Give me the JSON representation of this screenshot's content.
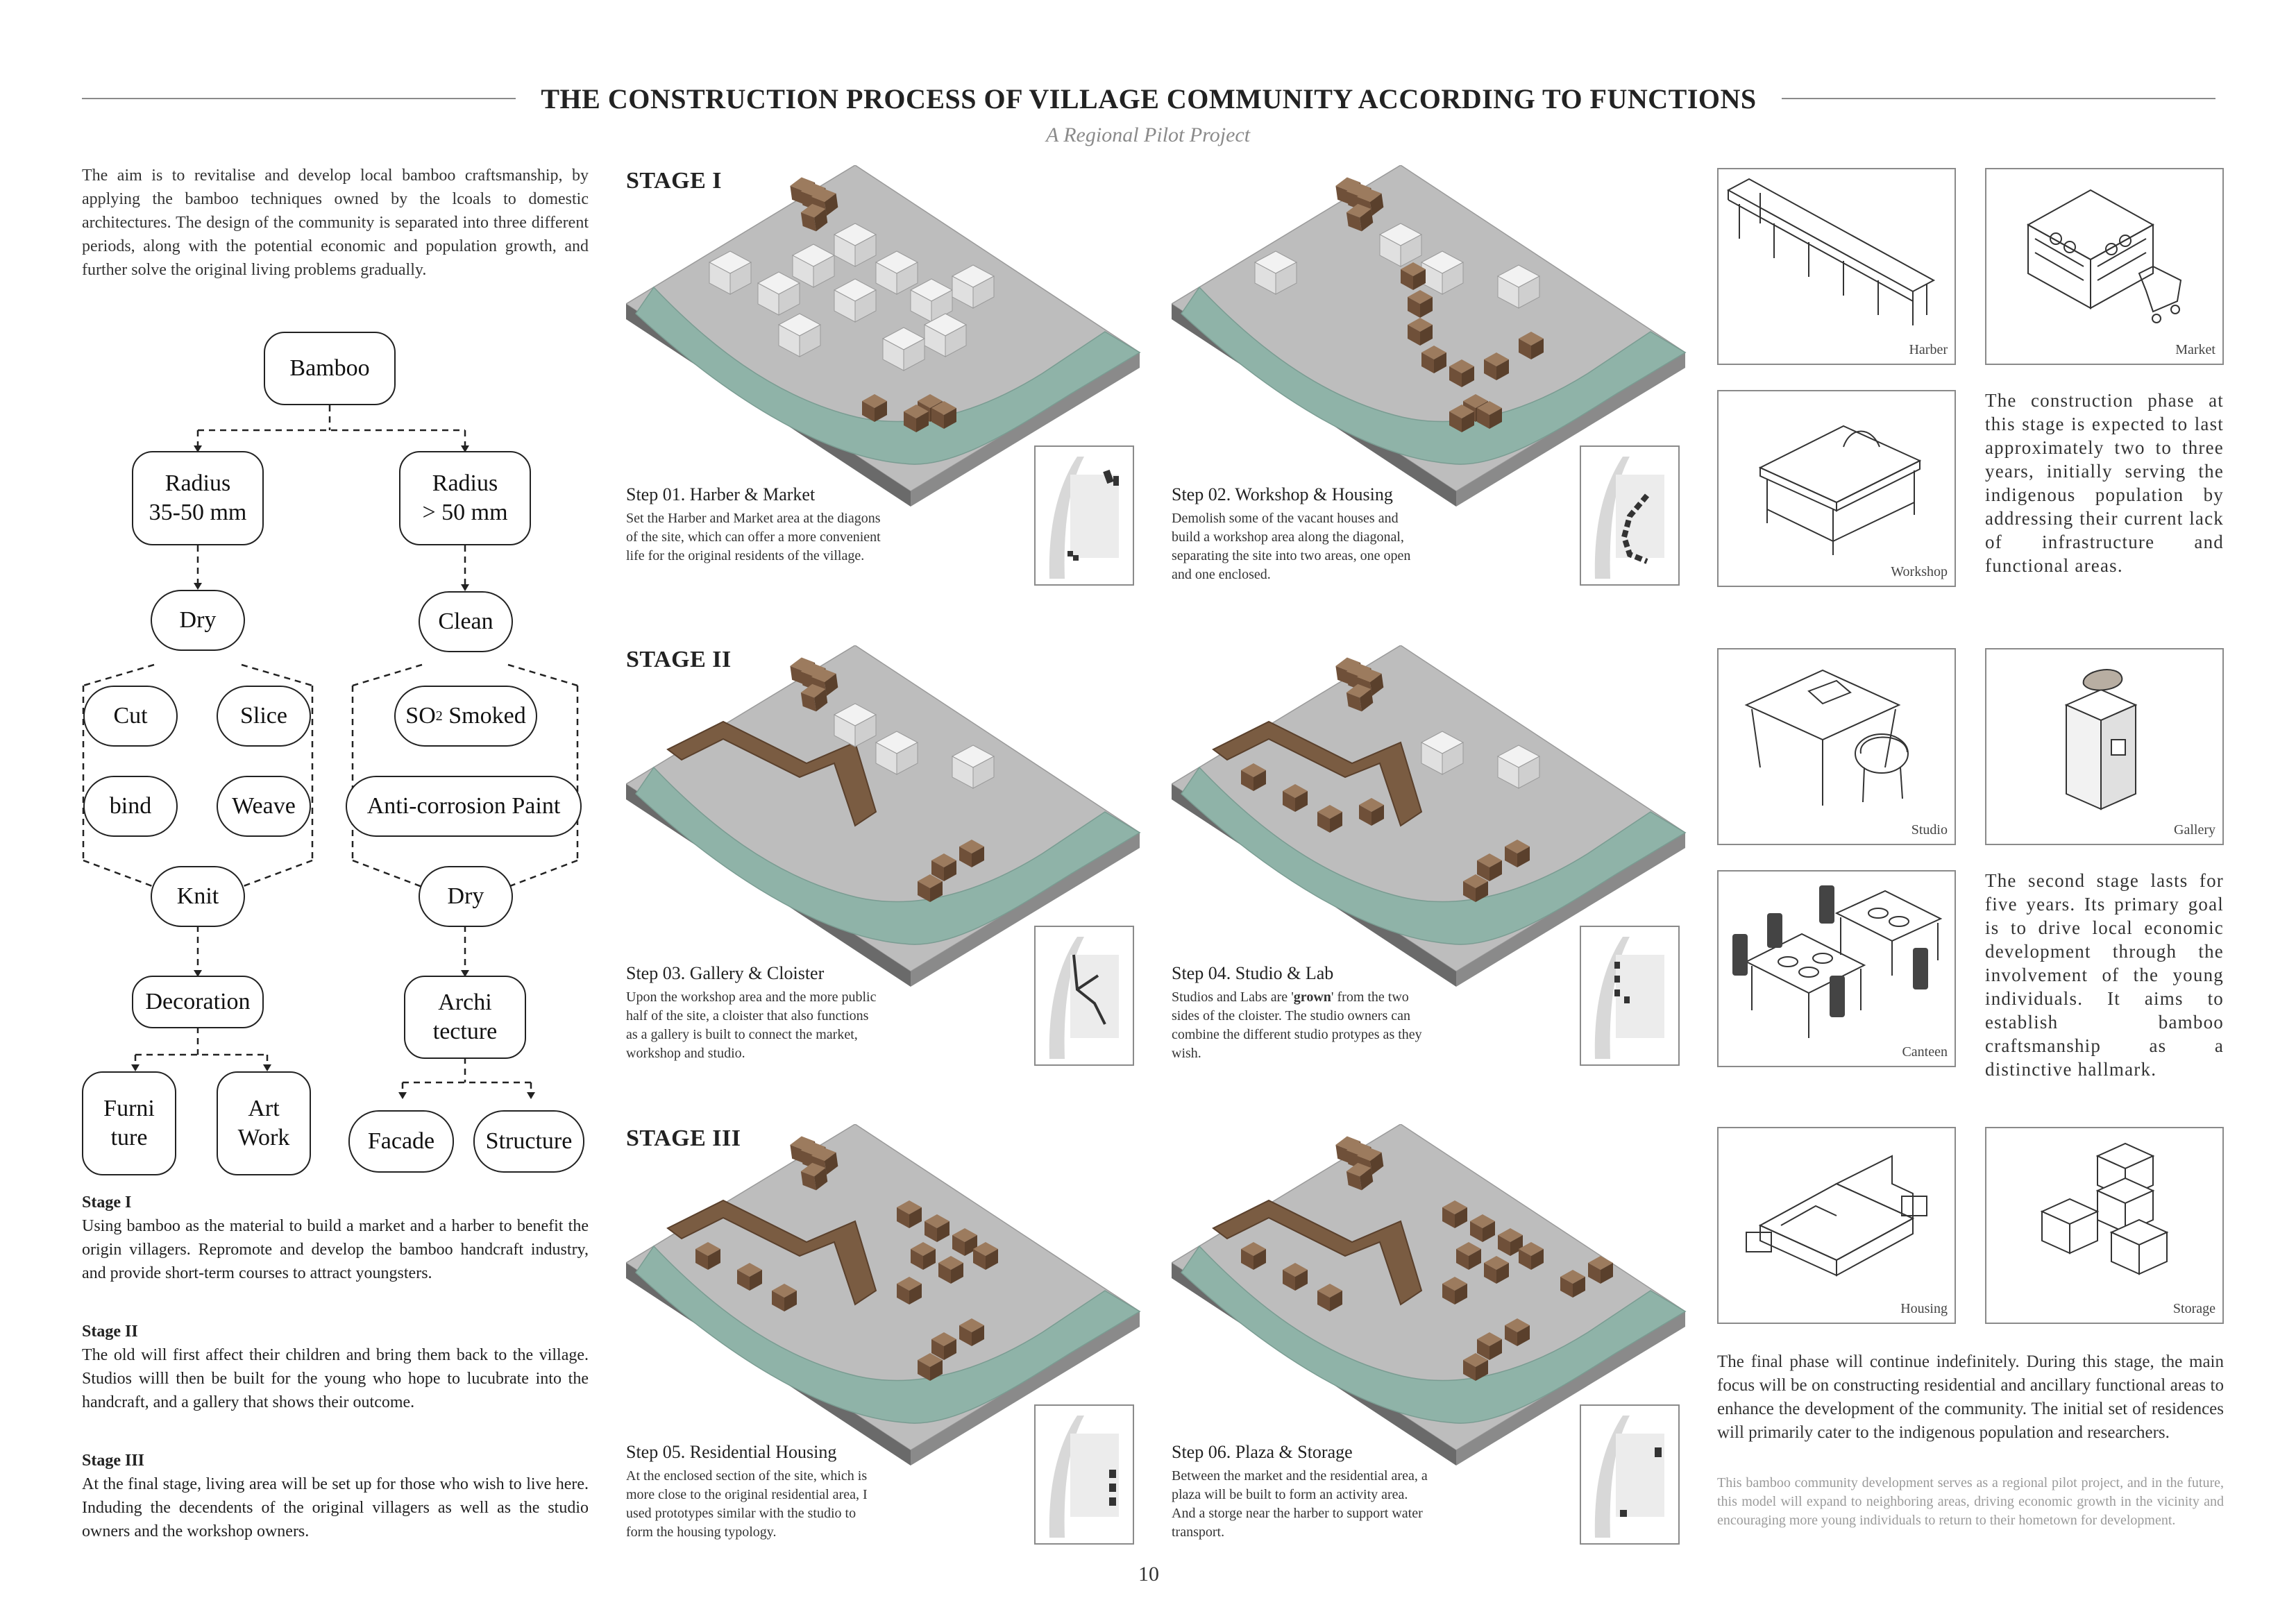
{
  "header": {
    "title": "THE CONSTRUCTION PROCESS OF VILLAGE COMMUNITY ACCORDING TO FUNCTIONS",
    "subtitle": "A Regional Pilot Project"
  },
  "intro": "The aim is to revitalise and develop local bamboo craftsmanship, by applying the bamboo techniques owned by the lcoals to domestic architectures. The design of the community is separated into three different periods, along with the potential economic and population growth, and further solve the original living problems gradually.",
  "flowchart": {
    "root": "Bamboo",
    "left": {
      "radius_line1": "Radius",
      "radius_line2": "35-50 mm",
      "dry": "Dry",
      "cut": "Cut",
      "slice": "Slice",
      "bind": "bind",
      "weave": "Weave",
      "knit": "Knit",
      "decoration": "Decoration",
      "furniture_line1": "Furni",
      "furniture_line2": "ture",
      "art_line1": "Art",
      "art_line2": "Work"
    },
    "right": {
      "radius_line1": "Radius",
      "radius_line2": "> 50 mm",
      "clean": "Clean",
      "smoked_prefix": "SO",
      "smoked_sub": "2",
      "smoked_suffix": " Smoked",
      "paint": "Anti-corrosion Paint",
      "dry": "Dry",
      "archi_line1": "Archi",
      "archi_line2": "tecture",
      "facade": "Facade",
      "structure": "Structure"
    }
  },
  "stage_notes": [
    {
      "heading": "Stage I",
      "text": "Using bamboo as the material to build a market and a harber to benefit the origin villagers. Repromote and develop the bamboo handcraft industry, and provide short-term courses to attract youngsters."
    },
    {
      "heading": "Stage II",
      "text": "The old will first affect their children and bring them back to the village. Studios willl then be built for the young who hope to lucubrate into the handcraft, and a gallery that shows their outcome."
    },
    {
      "heading": "Stage III",
      "text": "At the final stage, living area will be set up for those who wish to live here. Induding the decendents of the original villagers as well as the studio owners and the workshop owners."
    }
  ],
  "stages": [
    {
      "label": "STAGE I"
    },
    {
      "label": "STAGE II"
    },
    {
      "label": "STAGE III"
    }
  ],
  "steps": [
    {
      "title": "Step 01. Harber & Market",
      "desc": "Set the Harber and Market area at the diagons of the site, which can offer a more convenient life for the original residents of the village."
    },
    {
      "title": "Step 02. Workshop & Housing",
      "desc": "Demolish some of the vacant houses and build a workshop area along the diagonal, separating the site into two areas, one open and one enclosed."
    },
    {
      "title": "Step 03. Gallery & Cloister",
      "desc": "Upon the workshop area and the more public half of the site, a cloister that also functions as a gallery is built to connect the market, workshop and studio."
    },
    {
      "title": "Step 04. Studio & Lab",
      "desc_pre": "Studios and Labs are '",
      "desc_bold": "grown",
      "desc_post": "' from the two sides of the cloister. The studio owners can combine the different studio protypes as they wish."
    },
    {
      "title": "Step 05. Residential Housing",
      "desc": "At the enclosed section of the site, which is more close to the original residential area, I used prototypes similar with the studio to form the housing typology."
    },
    {
      "title": "Step 06. Plaza & Storage",
      "desc": "Between the market and the residential area, a plaza will be built to form an activity area. And a storge near the harber to support water transport."
    }
  ],
  "functions": {
    "harber": "Harber",
    "market": "Market",
    "workshop": "Workshop",
    "studio": "Studio",
    "gallery": "Gallery",
    "canteen": "Canteen",
    "housing": "Housing",
    "storage": "Storage"
  },
  "stage_descriptions": {
    "one": "The construction phase at this stage is expected to last approximately two to three years, initially serving the indigenous population by addressing their current lack of infrastructure and functional areas.",
    "two": "The second stage lasts for five years. Its primary goal is to drive local economic development through the involvement of the young individuals. It aims to establish bamboo craftsmanship as a distinctive hallmark.",
    "three": "The final phase will continue indefinitely. During this stage, the main focus will be on constructing residential and ancillary functional areas to enhance the development of the community. The initial set of residences will primarily cater to the indigenous population and researchers.",
    "footnote": "This bamboo community development serves as a regional pilot project, and in the future, this model will expand to neighboring areas, driving economic growth in the vicinity and encouraging more young individuals to return to their hometown for development."
  },
  "page_number": "10",
  "colors": {
    "river": "#8fb3a8",
    "site": "#b8b8b8",
    "bamboo": "#7a5c42",
    "house": "#e8e8e8",
    "rule": "#8a8a8a"
  }
}
